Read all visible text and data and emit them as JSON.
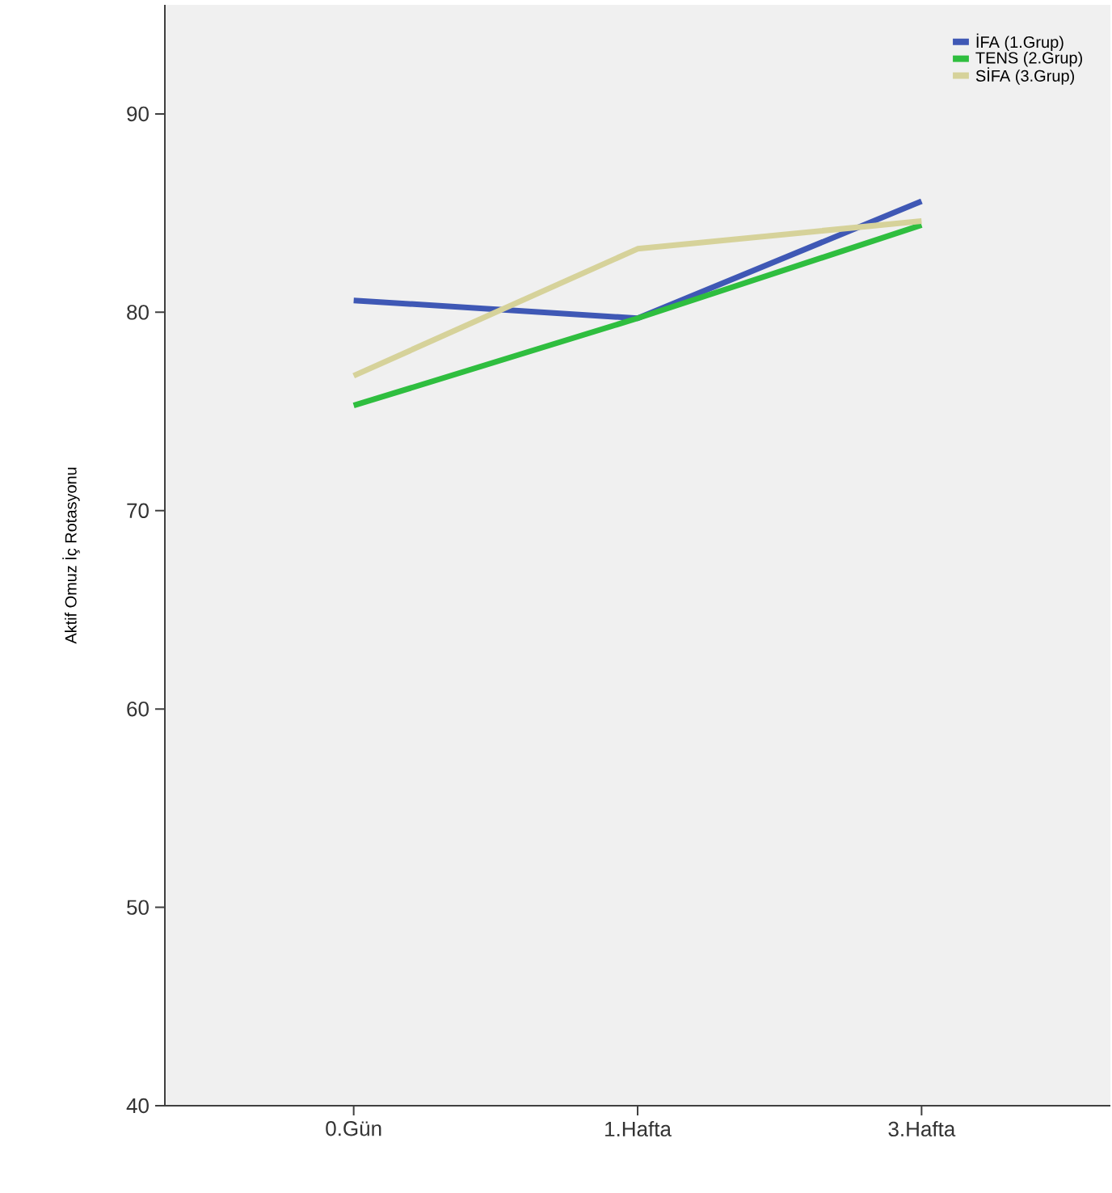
{
  "chart_data": {
    "type": "line",
    "ylabel": "Aktif Omuz İç Rotasyonu",
    "categories": [
      "0.Gün",
      "1.Hafta",
      "3.Hafta"
    ],
    "series": [
      {
        "name": "İFA (1.Grup)",
        "color": "#3f58b5",
        "values": [
          80.6,
          79.7,
          85.6
        ]
      },
      {
        "name": "TENS (2.Grup)",
        "color": "#2fbe3f",
        "values": [
          75.3,
          79.7,
          84.4
        ]
      },
      {
        "name": "SİFA (3.Grup)",
        "color": "#d6d29a",
        "values": [
          76.8,
          83.2,
          84.6
        ]
      }
    ],
    "ylim": [
      40,
      95.5
    ],
    "yticks": [
      40,
      50,
      60,
      70,
      80,
      90
    ],
    "grid": false,
    "legend": "top right",
    "marker": "none",
    "line_style": "solid"
  }
}
